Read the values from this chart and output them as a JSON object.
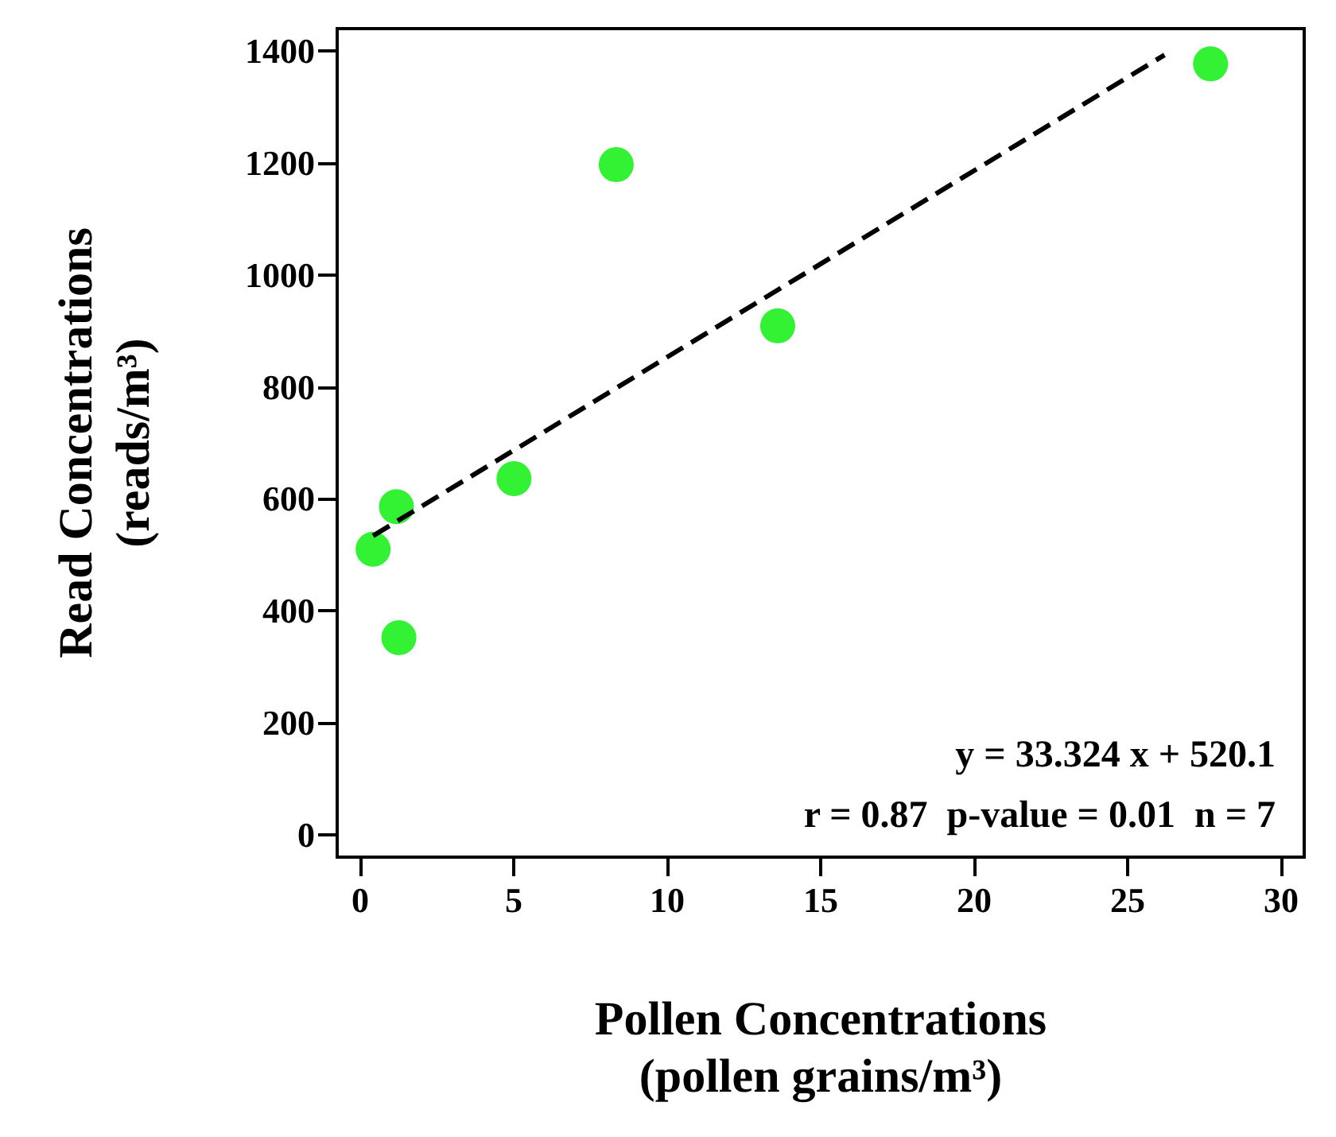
{
  "chart_data": {
    "type": "scatter",
    "xlabel": "Pollen Concentrations\n(pollen grains/m³)",
    "ylabel": "Read Concentrations\n(reads/m³)",
    "xlim": [
      -0.75,
      30.75
    ],
    "xticks": [
      0,
      5,
      10,
      15,
      20,
      25,
      30
    ],
    "ylim": [
      -40,
      1440
    ],
    "yticks": [
      0,
      200,
      400,
      600,
      800,
      1000,
      1200,
      1400
    ],
    "grid": false,
    "marker": "circle",
    "series": [
      {
        "color": "#00ee00",
        "x": [
          0.42,
          1.18,
          1.26,
          5.01,
          8.34,
          13.6,
          27.7
        ],
        "values": [
          510,
          586,
          352,
          636,
          1197,
          909,
          1377
        ]
      },
      {
        "type": "line",
        "color": "#000000",
        "line_style": "dashed",
        "marker": "none",
        "x": [
          0.42,
          26.2
        ],
        "values": [
          534,
          1393
        ]
      }
    ],
    "annotations": [
      "y = 33.324 x + 520.1",
      "r = 0.87  p-value = 0.01  n = 7"
    ]
  }
}
